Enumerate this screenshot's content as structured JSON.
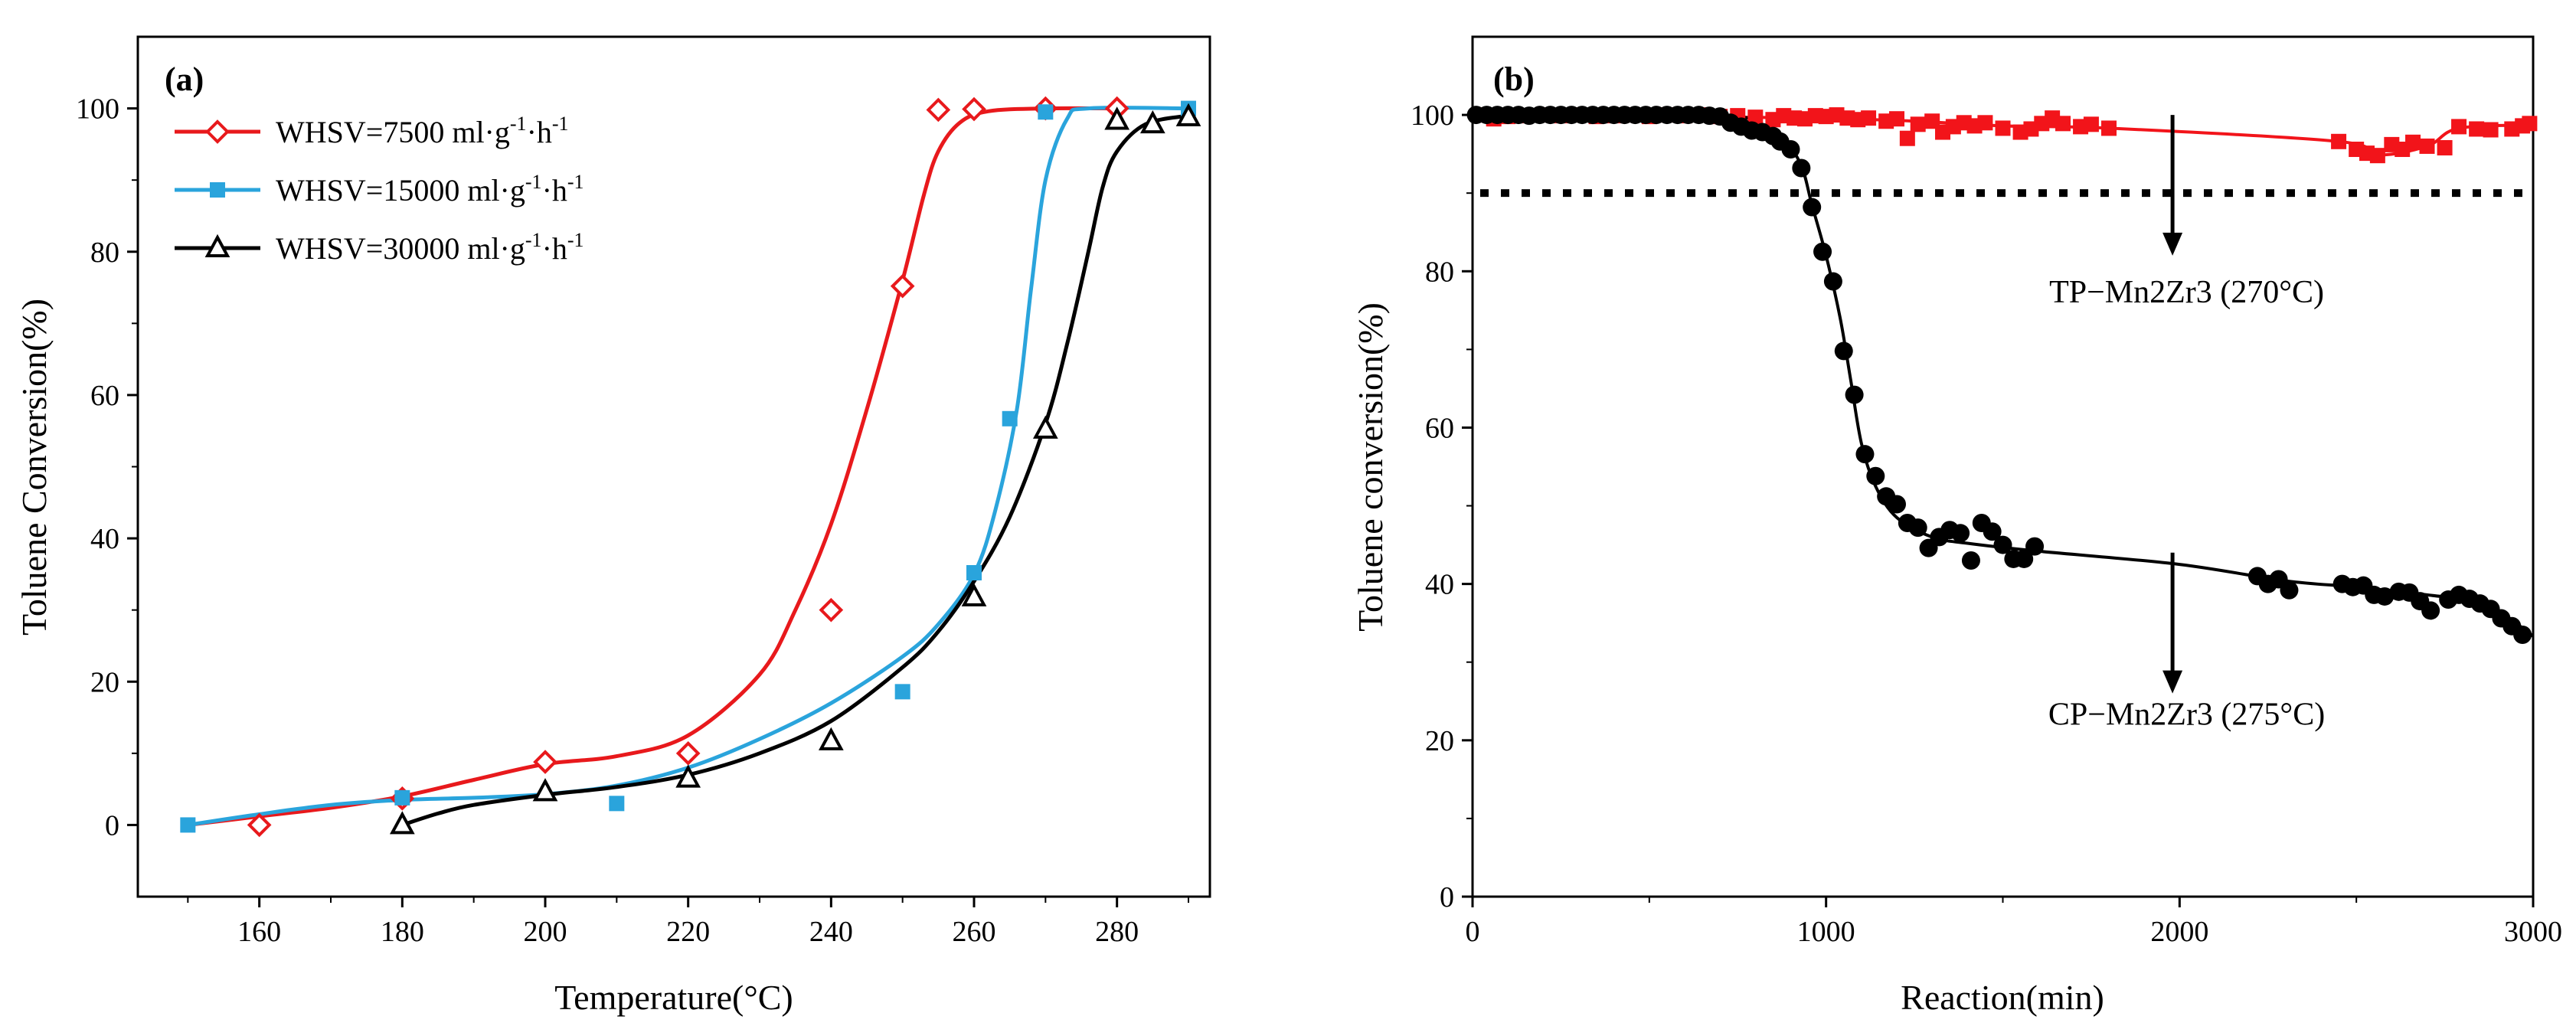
{
  "chart_data": [
    {
      "type": "line",
      "panel_label": "(a)",
      "xlabel": "Temperature(°C)",
      "ylabel": "Toluene Conversion(%)",
      "xlim": [
        143,
        293
      ],
      "ylim": [
        -10,
        110
      ],
      "xticks": [
        160,
        180,
        200,
        220,
        240,
        260,
        280
      ],
      "yticks": [
        0,
        20,
        40,
        60,
        80,
        100
      ],
      "legend_position": "top-left",
      "series": [
        {
          "name": "WHSV=7500 ml·g-1·h-1",
          "legend_parts": {
            "prefix": "WHSV=7500 ml·g",
            "sup1": "-1",
            "mid": "·h",
            "sup2": "-1"
          },
          "color": "#e8191c",
          "marker": "diamond-open",
          "points": [
            [
              160,
              0
            ],
            [
              180,
              3.7
            ],
            [
              200,
              8.8
            ],
            [
              220,
              10
            ],
            [
              240,
              30
            ],
            [
              250,
              75.2
            ],
            [
              255,
              99.8
            ],
            [
              260,
              99.9
            ],
            [
              270,
              100
            ],
            [
              280,
              100
            ]
          ],
          "fit": [
            [
              150,
              0
            ],
            [
              160,
              1.2
            ],
            [
              170,
              2.4
            ],
            [
              180,
              4
            ],
            [
              190,
              6.3
            ],
            [
              200,
              8.5
            ],
            [
              210,
              9.6
            ],
            [
              220,
              12.5
            ],
            [
              230,
              21
            ],
            [
              235,
              30
            ],
            [
              240,
              42
            ],
            [
              245,
              58
            ],
            [
              250,
              76
            ],
            [
              253,
              88
            ],
            [
              255,
              94
            ],
            [
              258,
              98
            ],
            [
              262,
              99.6
            ],
            [
              270,
              100
            ],
            [
              280,
              100
            ]
          ]
        },
        {
          "name": "WHSV=15000 ml·g-1·h-1",
          "legend_parts": {
            "prefix": "WHSV=15000 ml·g",
            "sup1": "-1",
            "mid": "·h",
            "sup2": "-1"
          },
          "color": "#2aa4dc",
          "marker": "square-filled",
          "points": [
            [
              150,
              0
            ],
            [
              180,
              3.8
            ],
            [
              210,
              3
            ],
            [
              250,
              18.6
            ],
            [
              260,
              35.2
            ],
            [
              265,
              56.7
            ],
            [
              270,
              99.5
            ],
            [
              290,
              100
            ]
          ],
          "fit": [
            [
              150,
              0
            ],
            [
              160,
              1.5
            ],
            [
              170,
              2.8
            ],
            [
              180,
              3.5
            ],
            [
              190,
              3.8
            ],
            [
              200,
              4.3
            ],
            [
              210,
              5.5
            ],
            [
              220,
              8
            ],
            [
              230,
              12
            ],
            [
              240,
              17
            ],
            [
              250,
              23.5
            ],
            [
              255,
              28
            ],
            [
              260,
              35
            ],
            [
              263,
              44
            ],
            [
              266,
              58
            ],
            [
              268,
              75
            ],
            [
              270,
              90
            ],
            [
              273,
              98.5
            ],
            [
              276,
              100
            ],
            [
              290,
              100
            ]
          ]
        },
        {
          "name": "WHSV=30000 ml·g-1·h-1",
          "legend_parts": {
            "prefix": "WHSV=30000 ml·g",
            "sup1": "-1",
            "mid": "·h",
            "sup2": "-1"
          },
          "color": "#000000",
          "marker": "triangle-open",
          "points": [
            [
              180,
              0
            ],
            [
              200,
              4.6
            ],
            [
              220,
              6.5
            ],
            [
              240,
              11.7
            ],
            [
              260,
              31.8
            ],
            [
              270,
              55.2
            ],
            [
              280,
              98.3
            ],
            [
              285,
              97.8
            ],
            [
              290,
              98.8
            ]
          ],
          "fit": [
            [
              180,
              0
            ],
            [
              185,
              1.6
            ],
            [
              190,
              2.8
            ],
            [
              200,
              4.2
            ],
            [
              210,
              5.3
            ],
            [
              220,
              7
            ],
            [
              230,
              10
            ],
            [
              240,
              14.5
            ],
            [
              250,
              22
            ],
            [
              255,
              27
            ],
            [
              260,
              34
            ],
            [
              265,
              43
            ],
            [
              270,
              56
            ],
            [
              273,
              67
            ],
            [
              276,
              80
            ],
            [
              278,
              89
            ],
            [
              280,
              94
            ],
            [
              284,
              97.8
            ],
            [
              290,
              99
            ]
          ]
        }
      ]
    },
    {
      "type": "scatter",
      "panel_label": "(b)",
      "xlabel": "Reaction(min)",
      "ylabel": "Toluene conversion(%)",
      "xlim": [
        0,
        3000
      ],
      "ylim": [
        0,
        110
      ],
      "xticks": [
        0,
        1000,
        2000,
        3000
      ],
      "yticks": [
        0,
        20,
        40,
        60,
        80,
        100
      ],
      "reference_line": {
        "y": 90,
        "style": "dotted"
      },
      "annotations": [
        {
          "text": "TP−Mn2Zr3 (270°C)",
          "arrow_x": 1980,
          "arrow_from_y": 100,
          "arrow_to_y": 82,
          "text_x": 2020,
          "text_y": 76
        },
        {
          "text": "CP−Mn2Zr3 (275°C)",
          "arrow_x": 1980,
          "arrow_from_y": 44,
          "arrow_to_y": 26,
          "text_x": 2020,
          "text_y": 22
        }
      ],
      "series": [
        {
          "name": "TP−Mn2Zr3 (270°C)",
          "color": "#f2141a",
          "marker": "square-filled",
          "points": [
            [
              20,
              100
            ],
            [
              60,
              99.5
            ],
            [
              100,
              99.8
            ],
            [
              150,
              99.9
            ],
            [
              200,
              100
            ],
            [
              250,
              99.9
            ],
            [
              300,
              100
            ],
            [
              350,
              99.8
            ],
            [
              400,
              99.9
            ],
            [
              450,
              100
            ],
            [
              500,
              99.8
            ],
            [
              550,
              100
            ],
            [
              600,
              99.9
            ],
            [
              650,
              100
            ],
            [
              700,
              99.8
            ],
            [
              750,
              99.9
            ],
            [
              800,
              99.7
            ],
            [
              850,
              99.4
            ],
            [
              880,
              99.9
            ],
            [
              910,
              99.6
            ],
            [
              940,
              99.5
            ],
            [
              970,
              99.9
            ],
            [
              1000,
              99.8
            ],
            [
              1030,
              100
            ],
            [
              1060,
              99.6
            ],
            [
              1090,
              99.4
            ],
            [
              1120,
              99.6
            ],
            [
              1170,
              99.2
            ],
            [
              1200,
              99.5
            ],
            [
              1230,
              97
            ],
            [
              1260,
              98.8
            ],
            [
              1300,
              99.2
            ],
            [
              1330,
              97.8
            ],
            [
              1360,
              98.5
            ],
            [
              1390,
              99
            ],
            [
              1420,
              98.6
            ],
            [
              1450,
              99
            ],
            [
              1500,
              98.3
            ],
            [
              1550,
              97.8
            ],
            [
              1580,
              98.2
            ],
            [
              1610,
              98.9
            ],
            [
              1640,
              99.6
            ],
            [
              1670,
              98.9
            ],
            [
              1720,
              98.5
            ],
            [
              1750,
              98.8
            ],
            [
              1800,
              98.3
            ],
            [
              2450,
              96.6
            ],
            [
              2500,
              95.6
            ],
            [
              2530,
              95.1
            ],
            [
              2560,
              94.8
            ],
            [
              2600,
              96.2
            ],
            [
              2630,
              95.6
            ],
            [
              2660,
              96.5
            ],
            [
              2700,
              96
            ],
            [
              2750,
              95.8
            ],
            [
              2790,
              98.5
            ],
            [
              2840,
              98.2
            ],
            [
              2880,
              98.1
            ],
            [
              2940,
              98.2
            ],
            [
              2970,
              98.6
            ],
            [
              2990,
              98.9
            ]
          ],
          "fit": [
            [
              0,
              99.9
            ],
            [
              800,
              99.7
            ],
            [
              1200,
              99.3
            ],
            [
              1500,
              98.6
            ],
            [
              1800,
              98.3
            ],
            [
              2450,
              96.6
            ],
            [
              2560,
              94.9
            ],
            [
              2700,
              96
            ],
            [
              2790,
              98.3
            ],
            [
              3000,
              98.7
            ]
          ]
        },
        {
          "name": "CP−Mn2Zr3 (275°C)",
          "color": "#000000",
          "marker": "circle-filled",
          "points": [
            [
              10,
              100
            ],
            [
              40,
              100
            ],
            [
              70,
              100
            ],
            [
              100,
              100
            ],
            [
              130,
              100
            ],
            [
              160,
              99.9
            ],
            [
              190,
              100
            ],
            [
              220,
              100
            ],
            [
              250,
              100
            ],
            [
              280,
              100
            ],
            [
              310,
              100
            ],
            [
              340,
              100
            ],
            [
              370,
              100
            ],
            [
              400,
              100
            ],
            [
              430,
              100
            ],
            [
              460,
              100
            ],
            [
              490,
              100
            ],
            [
              520,
              100
            ],
            [
              550,
              100
            ],
            [
              580,
              100
            ],
            [
              610,
              100
            ],
            [
              640,
              100
            ],
            [
              670,
              99.9
            ],
            [
              700,
              99.8
            ],
            [
              730,
              99
            ],
            [
              760,
              98.5
            ],
            [
              790,
              98
            ],
            [
              820,
              97.8
            ],
            [
              850,
              97.3
            ],
            [
              870,
              96.6
            ],
            [
              900,
              95.6
            ],
            [
              930,
              93.2
            ],
            [
              960,
              88.2
            ],
            [
              990,
              82.5
            ],
            [
              1020,
              78.7
            ],
            [
              1050,
              69.8
            ],
            [
              1080,
              64.2
            ],
            [
              1110,
              56.6
            ],
            [
              1140,
              53.8
            ],
            [
              1170,
              51.2
            ],
            [
              1200,
              50.2
            ],
            [
              1230,
              47.8
            ],
            [
              1260,
              47.2
            ],
            [
              1290,
              44.6
            ],
            [
              1320,
              46
            ],
            [
              1350,
              46.9
            ],
            [
              1380,
              46.5
            ],
            [
              1410,
              43
            ],
            [
              1440,
              47.8
            ],
            [
              1470,
              46.7
            ],
            [
              1500,
              45
            ],
            [
              1530,
              43.2
            ],
            [
              1560,
              43.2
            ],
            [
              1590,
              44.8
            ],
            [
              2220,
              41
            ],
            [
              2250,
              40
            ],
            [
              2280,
              40.6
            ],
            [
              2310,
              39.2
            ],
            [
              2460,
              40
            ],
            [
              2490,
              39.6
            ],
            [
              2520,
              39.8
            ],
            [
              2550,
              38.6
            ],
            [
              2580,
              38.4
            ],
            [
              2620,
              39
            ],
            [
              2650,
              38.9
            ],
            [
              2680,
              37.8
            ],
            [
              2710,
              36.6
            ],
            [
              2760,
              38
            ],
            [
              2790,
              38.6
            ],
            [
              2820,
              38.1
            ],
            [
              2850,
              37.5
            ],
            [
              2880,
              36.8
            ],
            [
              2910,
              35.6
            ],
            [
              2940,
              34.6
            ],
            [
              2970,
              33.5
            ]
          ],
          "fit": [
            [
              0,
              100
            ],
            [
              700,
              99.9
            ],
            [
              800,
              98.7
            ],
            [
              880,
              96.8
            ],
            [
              930,
              93.5
            ],
            [
              960,
              88.5
            ],
            [
              1000,
              82
            ],
            [
              1040,
              74
            ],
            [
              1070,
              66
            ],
            [
              1100,
              58
            ],
            [
              1140,
              52.5
            ],
            [
              1200,
              48.5
            ],
            [
              1300,
              46
            ],
            [
              1400,
              45.2
            ],
            [
              1600,
              44.2
            ],
            [
              2000,
              42.5
            ],
            [
              2300,
              40.4
            ],
            [
              2500,
              39.6
            ],
            [
              2700,
              38.6
            ],
            [
              2850,
              37.6
            ],
            [
              2950,
              35
            ],
            [
              3000,
              33.3
            ]
          ]
        }
      ]
    }
  ]
}
